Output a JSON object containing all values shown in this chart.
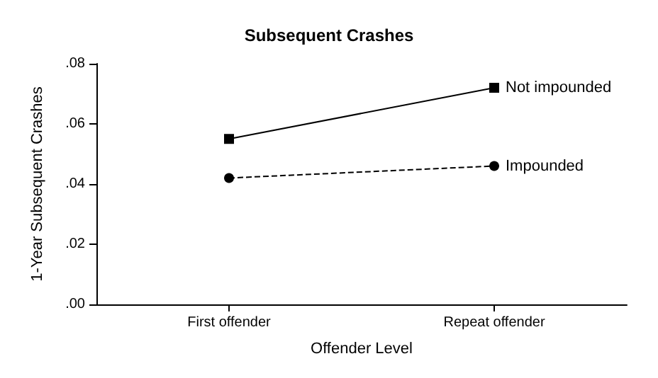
{
  "chart_data": {
    "type": "line",
    "title": "Subsequent Crashes",
    "xlabel": "Offender Level",
    "ylabel": "1-Year Subsequent Crashes",
    "categories": [
      "First offender",
      "Repeat offender"
    ],
    "series": [
      {
        "name": "Not impounded",
        "color": "#000000",
        "values": [
          0.055,
          0.072
        ],
        "marker": "square",
        "line_style": "solid"
      },
      {
        "name": "Impounded",
        "color": "#000000",
        "values": [
          0.042,
          0.046
        ],
        "marker": "circle",
        "line_style": "dashed"
      }
    ],
    "ylim": [
      0,
      0.08
    ],
    "yticks": [
      {
        "value": 0,
        "label": ".00"
      },
      {
        "value": 0.02,
        "label": ".02"
      },
      {
        "value": 0.04,
        "label": ".04"
      },
      {
        "value": 0.06,
        "label": ".06"
      },
      {
        "value": 0.08,
        "label": ".08"
      }
    ],
    "grid": false,
    "legend": false
  }
}
